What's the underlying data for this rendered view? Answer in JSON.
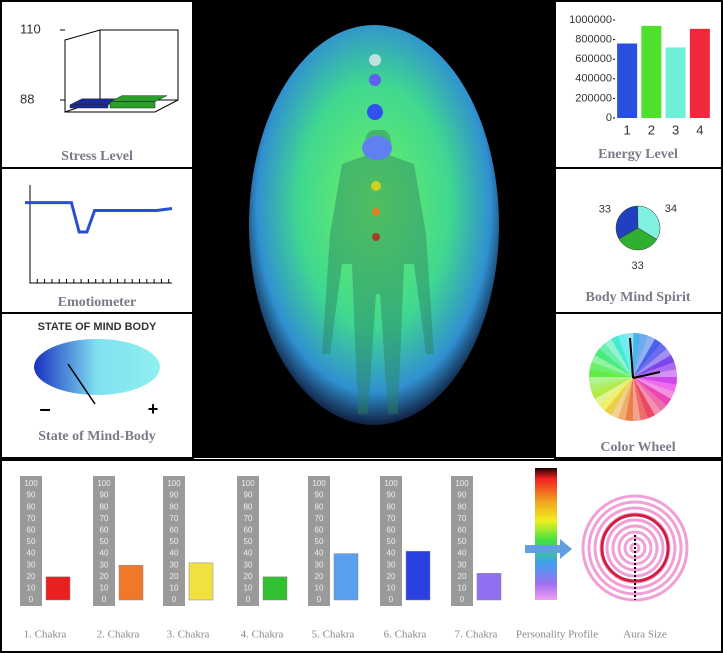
{
  "chart_data": [
    {
      "type": "bar3d",
      "title": "Stress Level",
      "values": [
        89,
        90
      ],
      "colors": [
        "#1a2a9a",
        "#2aa02a"
      ],
      "ylim": [
        88,
        110
      ],
      "yticks": [
        88,
        110
      ]
    },
    {
      "type": "bar",
      "title": "Energy Level",
      "categories": [
        "1",
        "2",
        "3",
        "4"
      ],
      "values": [
        760000,
        940000,
        720000,
        910000
      ],
      "colors": [
        "#2a4ee0",
        "#4ee02a",
        "#6ef0d8",
        "#f02a3a"
      ],
      "ylim": [
        0,
        1000000
      ],
      "yticks": [
        0,
        200000,
        400000,
        600000,
        800000,
        1000000
      ]
    },
    {
      "type": "line",
      "title": "Emotiometer",
      "values": [
        82,
        82,
        82,
        82,
        82,
        82,
        82,
        52,
        52,
        74,
        74,
        74,
        74,
        74,
        74,
        74,
        74,
        74,
        75,
        76
      ],
      "color": "#2a50d0",
      "ylim": [
        0,
        100
      ]
    },
    {
      "type": "pie",
      "title": "Body Mind Spirit",
      "values": [
        33,
        34,
        33
      ],
      "colors": [
        "#2040c0",
        "#80f0e0",
        "#30b030"
      ]
    },
    {
      "type": "chakra",
      "categories": [
        "1. Chakra",
        "2. Chakra",
        "3. Chakra",
        "4. Chakra",
        "5. Chakra",
        "6. Chakra",
        "7. Chakra"
      ],
      "values": [
        20,
        30,
        32,
        20,
        40,
        42,
        23
      ],
      "colors": [
        "#e82020",
        "#f07828",
        "#f0e040",
        "#30c030",
        "#5aa0f0",
        "#2a40e0",
        "#9070f0"
      ],
      "ylim": [
        0,
        100
      ],
      "yticks": [
        0,
        10,
        20,
        30,
        40,
        50,
        60,
        70,
        80,
        90,
        100
      ]
    }
  ],
  "panels": {
    "state_of_mind_body": {
      "heading": "STATE OF MIND BODY",
      "minus": "–",
      "plus": "+",
      "title": "State of Mind-Body"
    },
    "color_wheel": {
      "title": "Color Wheel"
    },
    "personality_profile": {
      "label": "Personality Profile"
    },
    "aura_size": {
      "label": "Aura Size"
    }
  }
}
